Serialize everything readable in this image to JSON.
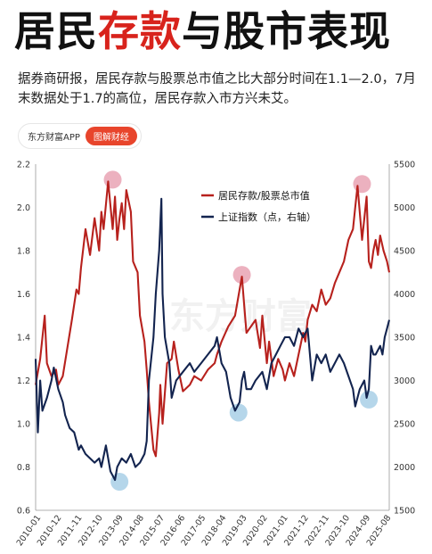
{
  "header": {
    "title_part1": "居民",
    "title_highlight": "存款",
    "title_part2": "与股市表现",
    "subtitle": "据券商研报，居民存款与股票总市值之比大部分时间在1.1—2.0，7月末数据处于1.7的高位，居民存款入市方兴未艾。"
  },
  "source": {
    "name": "东方财富APP",
    "badge": "图解财经"
  },
  "watermark": "东方财富",
  "colors": {
    "ratio_line": "#b7211d",
    "index_line": "#13244f",
    "peak_marker": "#e9a3b4",
    "trough_marker": "#a8cfe6"
  },
  "chart_data": {
    "type": "line",
    "title": "",
    "x_ticks": [
      "2010-01",
      "2010-12",
      "2011-11",
      "2012-10",
      "2013-09",
      "2014-08",
      "2015-07",
      "2016-06",
      "2017-05",
      "2018-04",
      "2019-03",
      "2020-02",
      "2021-01",
      "2021-12",
      "2022-11",
      "2023-10",
      "2024-09",
      "2025-08"
    ],
    "y_left": {
      "min": 0.6,
      "max": 2.2,
      "ticks": [
        0.6,
        0.8,
        1.0,
        1.2,
        1.4,
        1.6,
        1.8,
        2.0,
        2.2
      ]
    },
    "y_right": {
      "min": 1500,
      "max": 5500,
      "ticks": [
        1500,
        2000,
        2500,
        3000,
        3500,
        4000,
        4500,
        5000,
        5500
      ]
    },
    "legend_position": "top-center",
    "series": [
      {
        "name": "居民存款/股票总市值",
        "axis": "left",
        "x": [
          2010.0,
          2010.2,
          2010.4,
          2010.5,
          2010.7,
          2010.9,
          2011.0,
          2011.2,
          2011.4,
          2011.6,
          2011.8,
          2011.9,
          2012.0,
          2012.2,
          2012.4,
          2012.6,
          2012.8,
          2012.9,
          2013.0,
          2013.2,
          2013.4,
          2013.5,
          2013.6,
          2013.7,
          2013.8,
          2013.9,
          2014.0,
          2014.2,
          2014.3,
          2014.5,
          2014.6,
          2014.8,
          2014.9,
          2015.0,
          2015.2,
          2015.3,
          2015.45,
          2015.5,
          2015.6,
          2015.8,
          2016.0,
          2016.1,
          2016.3,
          2016.5,
          2016.8,
          2017.0,
          2017.3,
          2017.6,
          2017.9,
          2018.0,
          2018.2,
          2018.5,
          2018.8,
          2019.0,
          2019.1,
          2019.2,
          2019.3,
          2019.5,
          2019.7,
          2019.9,
          2020.0,
          2020.2,
          2020.3,
          2020.5,
          2020.7,
          2020.9,
          2021.0,
          2021.2,
          2021.4,
          2021.6,
          2021.8,
          2021.9,
          2022.0,
          2022.2,
          2022.4,
          2022.6,
          2022.8,
          2023.0,
          2023.2,
          2023.4,
          2023.6,
          2023.8,
          2024.0,
          2024.1,
          2024.2,
          2024.4,
          2024.6,
          2024.7,
          2024.8,
          2024.9,
          2025.0,
          2025.1,
          2025.2,
          2025.35,
          2025.5,
          2025.6
        ],
        "y": [
          1.18,
          1.3,
          1.5,
          1.28,
          1.22,
          1.25,
          1.18,
          1.22,
          1.35,
          1.48,
          1.62,
          1.6,
          1.72,
          1.9,
          1.78,
          1.95,
          1.8,
          1.98,
          1.9,
          2.12,
          1.9,
          2.05,
          1.85,
          1.95,
          2.02,
          1.9,
          2.08,
          1.98,
          1.75,
          1.7,
          1.5,
          1.38,
          1.25,
          1.1,
          0.88,
          0.85,
          1.05,
          1.18,
          1.0,
          1.28,
          1.3,
          1.38,
          1.25,
          1.15,
          1.18,
          1.22,
          1.2,
          1.25,
          1.28,
          1.32,
          1.38,
          1.45,
          1.5,
          1.62,
          1.68,
          1.55,
          1.42,
          1.45,
          1.48,
          1.35,
          1.5,
          1.28,
          1.38,
          1.22,
          1.3,
          1.25,
          1.2,
          1.28,
          1.22,
          1.32,
          1.42,
          1.38,
          1.48,
          1.55,
          1.52,
          1.62,
          1.55,
          1.58,
          1.65,
          1.7,
          1.75,
          1.85,
          1.9,
          2.0,
          2.1,
          1.85,
          2.05,
          1.75,
          1.72,
          1.8,
          1.85,
          1.78,
          1.87,
          1.8,
          1.75,
          1.7
        ]
      },
      {
        "name": "上证指数（点，右轴）",
        "axis": "right",
        "x": [
          2010.0,
          2010.1,
          2010.2,
          2010.3,
          2010.5,
          2010.7,
          2010.8,
          2011.0,
          2011.2,
          2011.3,
          2011.5,
          2011.7,
          2011.9,
          2012.0,
          2012.2,
          2012.4,
          2012.6,
          2012.8,
          2012.9,
          2013.1,
          2013.3,
          2013.5,
          2013.6,
          2013.8,
          2014.0,
          2014.2,
          2014.4,
          2014.6,
          2014.8,
          2014.9,
          2015.0,
          2015.2,
          2015.3,
          2015.45,
          2015.55,
          2015.6,
          2015.7,
          2015.9,
          2016.0,
          2016.2,
          2016.5,
          2016.8,
          2017.0,
          2017.3,
          2017.6,
          2017.9,
          2018.0,
          2018.2,
          2018.4,
          2018.6,
          2018.8,
          2019.0,
          2019.1,
          2019.2,
          2019.3,
          2019.5,
          2019.7,
          2020.0,
          2020.2,
          2020.4,
          2020.6,
          2020.8,
          2021.0,
          2021.2,
          2021.4,
          2021.6,
          2021.8,
          2022.0,
          2022.2,
          2022.4,
          2022.6,
          2022.8,
          2023.0,
          2023.2,
          2023.4,
          2023.6,
          2023.8,
          2024.0,
          2024.1,
          2024.3,
          2024.5,
          2024.6,
          2024.7,
          2024.8,
          2024.9,
          2025.0,
          2025.2,
          2025.3,
          2025.4,
          2025.5,
          2025.6
        ],
        "y": [
          3250,
          2400,
          3000,
          2650,
          2800,
          3000,
          3150,
          2900,
          2750,
          2600,
          2450,
          2400,
          2200,
          2250,
          2150,
          2100,
          2050,
          2100,
          2000,
          2250,
          1950,
          1850,
          2000,
          2100,
          2050,
          2150,
          2000,
          2050,
          2150,
          2300,
          3000,
          3500,
          4000,
          4500,
          5100,
          4000,
          3500,
          3200,
          2800,
          3000,
          3100,
          3200,
          3100,
          3200,
          3300,
          3400,
          3500,
          3200,
          3100,
          2800,
          2650,
          2750,
          3000,
          3100,
          2900,
          2900,
          3000,
          3100,
          2900,
          3200,
          3300,
          3400,
          3500,
          3500,
          3400,
          3600,
          3500,
          3600,
          3000,
          3300,
          3200,
          3300,
          3100,
          3200,
          3300,
          3200,
          3050,
          2900,
          2700,
          2900,
          3000,
          2800,
          2900,
          3400,
          3300,
          3300,
          3400,
          3300,
          3500,
          3600,
          3700
        ]
      }
    ],
    "annotations": {
      "peaks": [
        2013.4,
        2019.1,
        2024.4
      ],
      "troughs": [
        2013.7,
        2018.95,
        2024.7
      ]
    }
  }
}
